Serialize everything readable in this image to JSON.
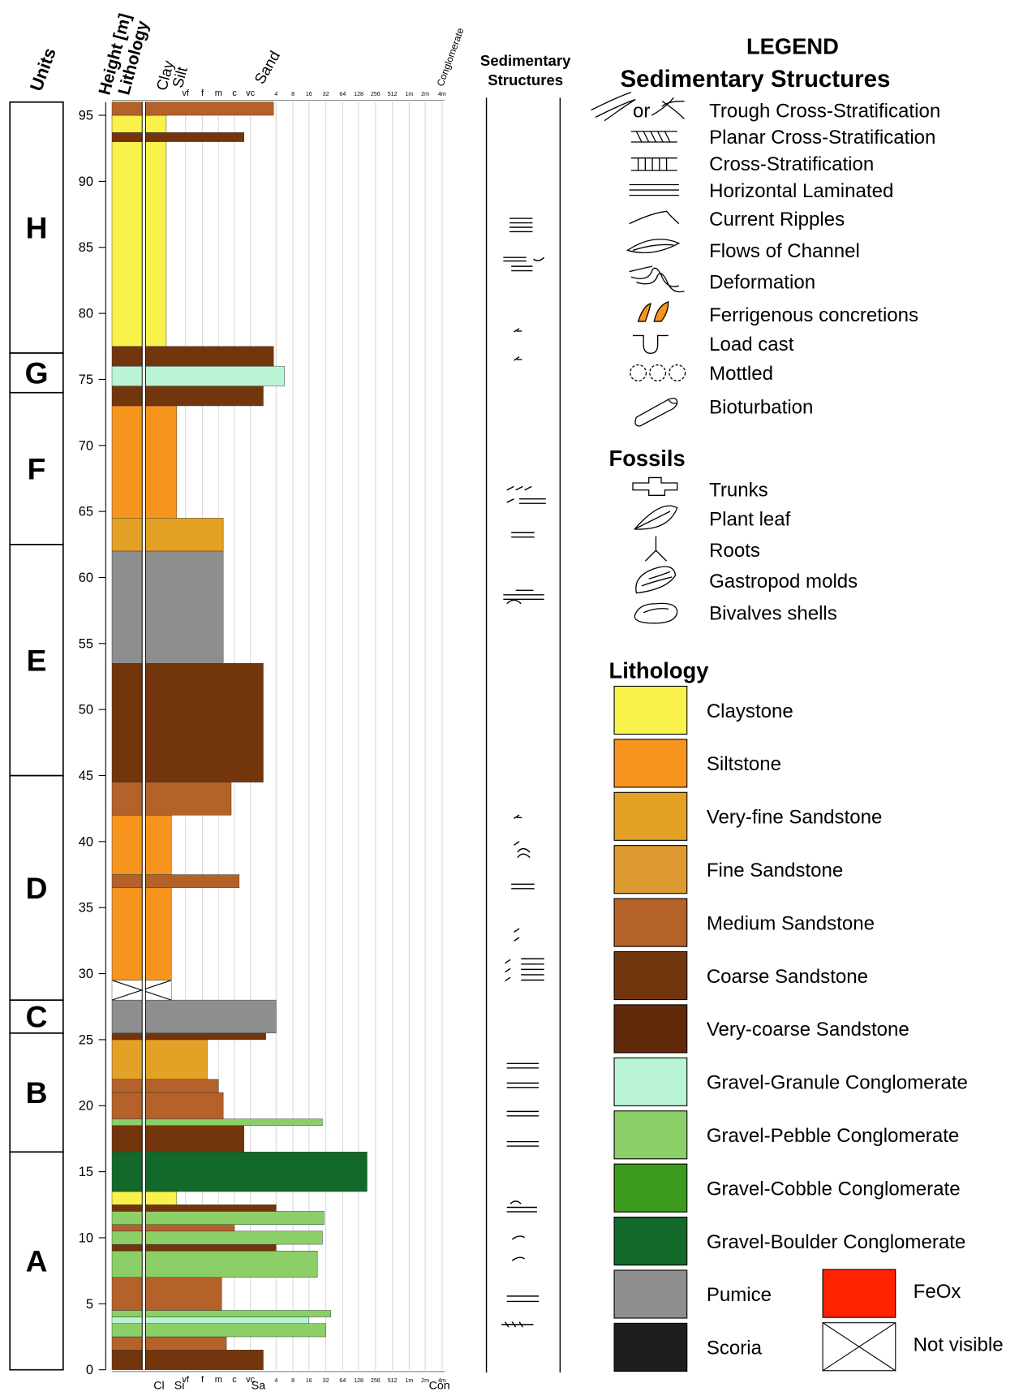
{
  "header": {
    "units": "Units",
    "height": "Height [m]",
    "lithology": "Lithology",
    "structures": [
      "Sedimentary",
      "Structures"
    ]
  },
  "column": {
    "ylim": [
      0,
      96
    ],
    "yticks": [
      0,
      5,
      10,
      15,
      20,
      25,
      30,
      35,
      40,
      45,
      50,
      55,
      60,
      65,
      70,
      75,
      80,
      85,
      90,
      95
    ],
    "units": [
      {
        "label": "A",
        "base": 0,
        "top": 16.5
      },
      {
        "label": "B",
        "base": 16.5,
        "top": 25.5
      },
      {
        "label": "C",
        "base": 25.5,
        "top": 28
      },
      {
        "label": "D",
        "base": 28,
        "top": 45
      },
      {
        "label": "E",
        "base": 45,
        "top": 62.5
      },
      {
        "label": "F",
        "base": 62.5,
        "top": 74
      },
      {
        "label": "G",
        "base": 74,
        "top": 77
      },
      {
        "label": "H",
        "base": 77,
        "top": 96
      }
    ],
    "grain_top": {
      "classes": [
        "Clay",
        "Silt",
        "Sand",
        "Conglomerate"
      ],
      "ticks": [
        "vf",
        "f",
        "m",
        "c",
        "vc",
        "4",
        "8",
        "16",
        "32",
        "64",
        "128",
        "256",
        "512",
        "1m",
        "2m",
        "4m"
      ]
    },
    "grain_bottom": {
      "classes": [
        "Cl",
        "Si",
        "Sa",
        "Con"
      ],
      "ticks": [
        "vf",
        "f",
        "m",
        "c",
        "vc",
        "4",
        "8",
        "16",
        "32",
        "64",
        "128",
        "256",
        "512",
        "1m",
        "2m",
        "4m"
      ]
    },
    "beds": [
      {
        "base": 0,
        "top": 1.5,
        "lithology": "Coarse Sandstone",
        "grain": 6.5
      },
      {
        "base": 1.5,
        "top": 2.5,
        "lithology": "Medium Sandstone",
        "grain": 4.5
      },
      {
        "base": 2.5,
        "top": 3.5,
        "lithology": "Gravel-Pebble Conglomerate",
        "grain": 10
      },
      {
        "base": 3.5,
        "top": 4,
        "lithology": "Gravel-Granule Conglomerate",
        "grain": 9
      },
      {
        "base": 4,
        "top": 4.5,
        "lithology": "Gravel-Pebble Conglomerate",
        "grain": 10.3
      },
      {
        "base": 4.5,
        "top": 7,
        "lithology": "Medium Sandstone",
        "grain": 4.2
      },
      {
        "base": 7,
        "top": 9,
        "lithology": "Gravel-Pebble Conglomerate",
        "grain": 9.5
      },
      {
        "base": 9,
        "top": 9.5,
        "lithology": "Coarse Sandstone",
        "grain": 7
      },
      {
        "base": 9.5,
        "top": 10.5,
        "lithology": "Gravel-Pebble Conglomerate",
        "grain": 9.8
      },
      {
        "base": 10.5,
        "top": 11,
        "lithology": "Medium Sandstone",
        "grain": 5
      },
      {
        "base": 11,
        "top": 12,
        "lithology": "Gravel-Pebble Conglomerate",
        "grain": 9.9
      },
      {
        "base": 12,
        "top": 12.5,
        "lithology": "Coarse Sandstone",
        "grain": 7
      },
      {
        "base": 12.5,
        "top": 13.5,
        "lithology": "Claystone",
        "grain": 1.5
      },
      {
        "base": 13.5,
        "top": 16.5,
        "lithology": "Gravel-Boulder Conglomerate",
        "grain": 12.5
      },
      {
        "base": 16.5,
        "top": 18.5,
        "lithology": "Coarse Sandstone",
        "grain": 5.6
      },
      {
        "base": 18.5,
        "top": 19,
        "lithology": "Gravel-Pebble Conglomerate",
        "grain": 9.8
      },
      {
        "base": 19,
        "top": 21,
        "lithology": "Medium Sandstone",
        "grain": 4.3
      },
      {
        "base": 21,
        "top": 22,
        "lithology": "Medium Sandstone",
        "grain": 4
      },
      {
        "base": 22,
        "top": 25,
        "lithology": "Very-fine Sandstone",
        "grain": 3.3
      },
      {
        "base": 25,
        "top": 25.5,
        "lithology": "Coarse Sandstone",
        "grain": 6.6
      },
      {
        "base": 25.5,
        "top": 28,
        "lithology": "Pumice",
        "grain": 7
      },
      {
        "base": 28,
        "top": 29.5,
        "lithology": "Not visible",
        "grain": 1.2
      },
      {
        "base": 29.5,
        "top": 36.5,
        "lithology": "Siltstone",
        "grain": 1.2
      },
      {
        "base": 36.5,
        "top": 37.5,
        "lithology": "Medium Sandstone",
        "grain": 5.3
      },
      {
        "base": 37.5,
        "top": 42,
        "lithology": "Siltstone",
        "grain": 1.2
      },
      {
        "base": 42,
        "top": 44.5,
        "lithology": "Medium Sandstone",
        "grain": 4.8
      },
      {
        "base": 44.5,
        "top": 53.5,
        "lithology": "Coarse Sandstone",
        "grain": 6.5
      },
      {
        "base": 53.5,
        "top": 62,
        "lithology": "Pumice",
        "grain": 4.3
      },
      {
        "base": 62,
        "top": 64.5,
        "lithology": "Very-fine Sandstone",
        "grain": 4.3
      },
      {
        "base": 64.5,
        "top": 73,
        "lithology": "Siltstone",
        "grain": 1.5
      },
      {
        "base": 73,
        "top": 74.5,
        "lithology": "Coarse Sandstone",
        "grain": 6.5
      },
      {
        "base": 74.5,
        "top": 76,
        "lithology": "Gravel-Granule Conglomerate",
        "grain": 7.5
      },
      {
        "base": 76,
        "top": 77.5,
        "lithology": "Coarse Sandstone",
        "grain": 6.9
      },
      {
        "base": 77.5,
        "top": 93,
        "lithology": "Claystone",
        "grain": 0.9
      },
      {
        "base": 93,
        "top": 93.7,
        "lithology": "Coarse Sandstone",
        "grain": 5.6
      },
      {
        "base": 93.7,
        "top": 95,
        "lithology": "Claystone",
        "grain": 0.9
      },
      {
        "base": 95,
        "top": 96,
        "lithology": "Medium Sandstone",
        "grain": 6.9
      }
    ]
  },
  "legend": {
    "title": "LEGEND",
    "structures_title": "Sedimentary Structures",
    "or": "or",
    "structures": [
      "Trough Cross-Stratification",
      "Planar Cross-Stratification",
      "Cross-Stratification",
      "Horizontal Laminated",
      "Current Ripples",
      "Flows of Channel",
      "Deformation",
      "Ferrigenous concretions",
      "Load cast",
      "Mottled",
      "Bioturbation"
    ],
    "fossils_title": "Fossils",
    "fossils": [
      "Trunks",
      "Plant leaf",
      "Roots",
      "Gastropod molds",
      "Bivalves shells"
    ],
    "lithology_title": "Lithology",
    "lithology": [
      {
        "name": "Claystone",
        "color": "#f8f24a"
      },
      {
        "name": "Siltstone",
        "color": "#f7941d"
      },
      {
        "name": "Very-fine Sandstone",
        "color": "#e3a126"
      },
      {
        "name": "Fine Sandstone",
        "color": "#dc9a30"
      },
      {
        "name": "Medium Sandstone",
        "color": "#b4622a"
      },
      {
        "name": "Coarse Sandstone",
        "color": "#73360c"
      },
      {
        "name": "Very-coarse Sandstone",
        "color": "#62290a"
      },
      {
        "name": "Gravel-Granule Conglomerate",
        "color": "#b9f4d6"
      },
      {
        "name": "Gravel-Pebble Conglomerate",
        "color": "#8ccf68"
      },
      {
        "name": "Gravel-Cobble Conglomerate",
        "color": "#3c9a1c"
      },
      {
        "name": "Gravel-Boulder Conglomerate",
        "color": "#13692a"
      },
      {
        "name": "Pumice",
        "color": "#8e8e8e"
      },
      {
        "name": "Scoria",
        "color": "#1e1e1e"
      }
    ],
    "extra": [
      {
        "name": "FeOx",
        "color": "#ff2200"
      },
      {
        "name": "Not visible",
        "color": "#ffffff"
      }
    ]
  }
}
